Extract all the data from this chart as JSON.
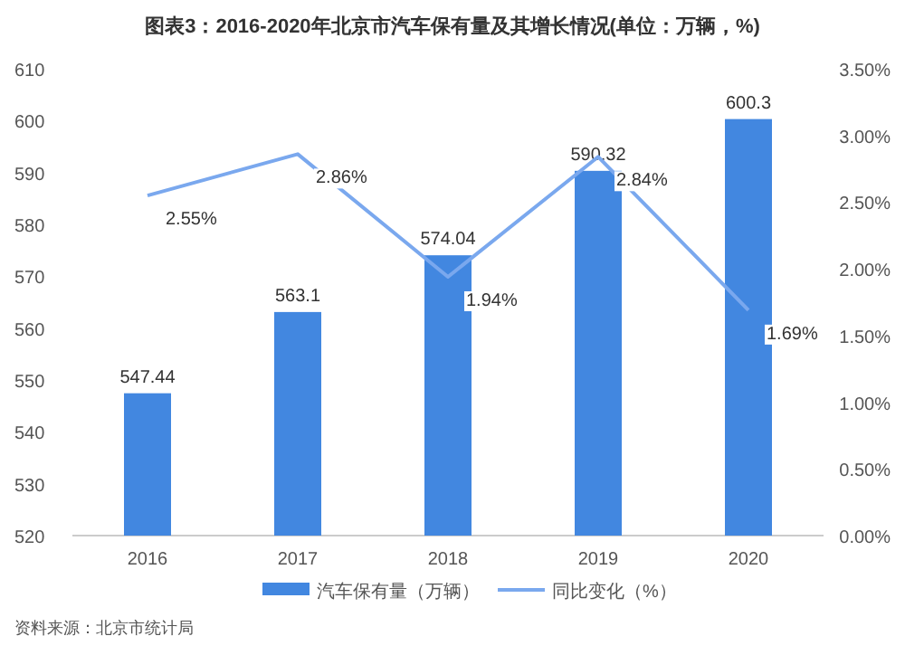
{
  "chart_data": {
    "type": "bar",
    "title": "图表3：2016-2020年北京市汽车保有量及其增长情况(单位：万辆，%)",
    "categories": [
      "2016",
      "2017",
      "2018",
      "2019",
      "2020"
    ],
    "series": [
      {
        "name": "汽车保有量（万辆）",
        "color": "#4287e0",
        "values": [
          547.44,
          563.1,
          574.04,
          590.32,
          600.3
        ],
        "value_labels": [
          "547.44",
          "563.1",
          "574.04",
          "590.32",
          "600.3"
        ]
      },
      {
        "name": "同比变化（%）",
        "type": "line",
        "axis": "y2",
        "color": "#7aa8ee",
        "values": [
          2.55,
          2.86,
          1.94,
          2.84,
          1.69
        ],
        "value_labels": [
          "2.55%",
          "2.86%",
          "1.94%",
          "2.84%",
          "1.69%"
        ]
      }
    ],
    "ylim": [
      520,
      610
    ],
    "yticks": [
      520,
      530,
      540,
      550,
      560,
      570,
      580,
      590,
      600,
      610
    ],
    "y2lim": [
      0,
      3.5
    ],
    "y2ticks": [
      {
        "value": 0,
        "label": "0.00%"
      },
      {
        "value": 0.5,
        "label": "0.50%"
      },
      {
        "value": 1,
        "label": "1.00%"
      },
      {
        "value": 1.5,
        "label": "1.50%"
      },
      {
        "value": 2,
        "label": "2.00%"
      },
      {
        "value": 2.5,
        "label": "2.50%"
      },
      {
        "value": 3,
        "label": "3.00%"
      },
      {
        "value": 3.5,
        "label": "3.50%"
      }
    ],
    "grid": false,
    "legend": "bottom",
    "annotations": [
      "资料来源：北京市统计局"
    ]
  }
}
